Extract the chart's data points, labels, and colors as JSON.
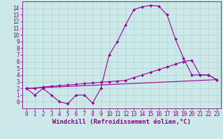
{
  "xlabel": "Windchill (Refroidissement éolien,°C)",
  "bg_color": "#cce8e8",
  "line_color": "#990099",
  "xlim": [
    -0.5,
    23.5
  ],
  "ylim": [
    -1.0,
    15.0
  ],
  "xticks": [
    0,
    1,
    2,
    3,
    4,
    5,
    6,
    7,
    8,
    9,
    10,
    11,
    12,
    13,
    14,
    15,
    16,
    17,
    18,
    19,
    20,
    21,
    22,
    23
  ],
  "yticks": [
    0,
    1,
    2,
    3,
    4,
    5,
    6,
    7,
    8,
    9,
    10,
    11,
    12,
    13,
    14
  ],
  "line1_x": [
    0,
    1,
    2,
    3,
    4,
    5,
    6,
    7,
    8,
    9,
    10,
    11,
    12,
    13,
    14,
    15,
    16,
    17,
    18,
    19,
    20,
    21,
    22,
    23
  ],
  "line1_y": [
    2.0,
    1.0,
    2.0,
    1.0,
    0.0,
    -0.3,
    1.0,
    1.0,
    -0.2,
    2.0,
    7.0,
    9.0,
    11.5,
    13.8,
    14.2,
    14.4,
    14.3,
    13.0,
    9.4,
    6.5,
    4.0,
    4.0,
    4.0,
    3.3
  ],
  "line2_x": [
    0,
    1,
    2,
    3,
    4,
    5,
    6,
    7,
    8,
    9,
    10,
    11,
    12,
    13,
    14,
    15,
    16,
    17,
    18,
    19,
    20,
    21,
    22,
    23
  ],
  "line2_y": [
    2.0,
    2.0,
    2.2,
    2.3,
    2.4,
    2.5,
    2.6,
    2.7,
    2.8,
    2.9,
    3.0,
    3.1,
    3.2,
    3.6,
    4.0,
    4.4,
    4.8,
    5.2,
    5.6,
    6.0,
    6.2,
    4.0,
    4.0,
    3.3
  ],
  "line3_x": [
    0,
    23
  ],
  "line3_y": [
    2.0,
    3.3
  ],
  "grid_color": "#aacfcf",
  "tick_fontsize": 5.5,
  "label_fontsize": 6.5
}
